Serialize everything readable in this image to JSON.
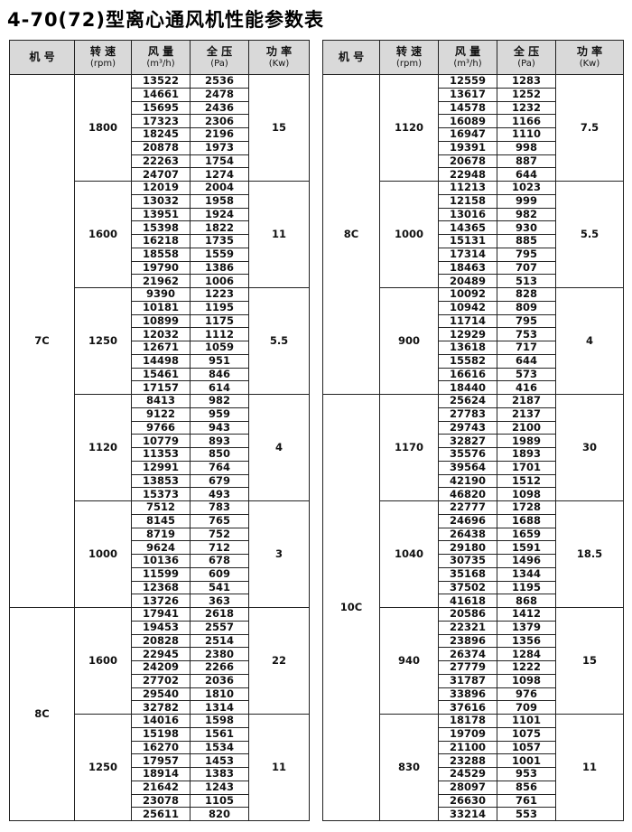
{
  "title": "4-70(72)型离心通风机性能参数表",
  "headers": [
    {
      "name": "机 号"
    },
    {
      "name": "转 速",
      "unit": "(rpm)"
    },
    {
      "name": "风 量",
      "unit": "(m³/h)"
    },
    {
      "name": "全 压",
      "unit": "(Pa)"
    },
    {
      "name": "功 率",
      "unit": "(Kw)"
    }
  ],
  "tables": [
    {
      "models": [
        {
          "name": "7C",
          "speeds": [
            {
              "speed": 1800,
              "power": 15,
              "rows": [
                [
                  13522,
                  2536
                ],
                [
                  14661,
                  2478
                ],
                [
                  15695,
                  2436
                ],
                [
                  17323,
                  2306
                ],
                [
                  18245,
                  2196
                ],
                [
                  20878,
                  1973
                ],
                [
                  22263,
                  1754
                ],
                [
                  24707,
                  1274
                ]
              ]
            },
            {
              "speed": 1600,
              "power": 11,
              "rows": [
                [
                  12019,
                  2004
                ],
                [
                  13032,
                  1958
                ],
                [
                  13951,
                  1924
                ],
                [
                  15398,
                  1822
                ],
                [
                  16218,
                  1735
                ],
                [
                  18558,
                  1559
                ],
                [
                  19790,
                  1386
                ],
                [
                  21962,
                  1006
                ]
              ]
            },
            {
              "speed": 1250,
              "power": 5.5,
              "rows": [
                [
                  9390,
                  1223
                ],
                [
                  10181,
                  1195
                ],
                [
                  10899,
                  1175
                ],
                [
                  12032,
                  1112
                ],
                [
                  12671,
                  1059
                ],
                [
                  14498,
                  951
                ],
                [
                  15461,
                  846
                ],
                [
                  17157,
                  614
                ]
              ]
            },
            {
              "speed": 1120,
              "power": 4,
              "rows": [
                [
                  8413,
                  982
                ],
                [
                  9122,
                  959
                ],
                [
                  9766,
                  943
                ],
                [
                  10779,
                  893
                ],
                [
                  11353,
                  850
                ],
                [
                  12991,
                  764
                ],
                [
                  13853,
                  679
                ],
                [
                  15373,
                  493
                ]
              ]
            },
            {
              "speed": 1000,
              "power": 3,
              "rows": [
                [
                  7512,
                  783
                ],
                [
                  8145,
                  765
                ],
                [
                  8719,
                  752
                ],
                [
                  9624,
                  712
                ],
                [
                  10136,
                  678
                ],
                [
                  11599,
                  609
                ],
                [
                  12368,
                  541
                ],
                [
                  13726,
                  363
                ]
              ]
            }
          ]
        },
        {
          "name": "8C",
          "speeds": [
            {
              "speed": 1600,
              "power": 22,
              "rows": [
                [
                  17941,
                  2618
                ],
                [
                  19453,
                  2557
                ],
                [
                  20828,
                  2514
                ],
                [
                  22945,
                  2380
                ],
                [
                  24209,
                  2266
                ],
                [
                  27702,
                  2036
                ],
                [
                  29540,
                  1810
                ],
                [
                  32782,
                  1314
                ]
              ]
            },
            {
              "speed": 1250,
              "power": 11,
              "rows": [
                [
                  14016,
                  1598
                ],
                [
                  15198,
                  1561
                ],
                [
                  16270,
                  1534
                ],
                [
                  17957,
                  1453
                ],
                [
                  18914,
                  1383
                ],
                [
                  21642,
                  1243
                ],
                [
                  23078,
                  1105
                ],
                [
                  25611,
                  820
                ]
              ]
            }
          ]
        }
      ]
    },
    {
      "models": [
        {
          "name": "8C",
          "speeds": [
            {
              "speed": 1120,
              "power": 7.5,
              "rows": [
                [
                  12559,
                  1283
                ],
                [
                  13617,
                  1252
                ],
                [
                  14578,
                  1232
                ],
                [
                  16089,
                  1166
                ],
                [
                  16947,
                  1110
                ],
                [
                  19391,
                  998
                ],
                [
                  20678,
                  887
                ],
                [
                  22948,
                  644
                ]
              ]
            },
            {
              "speed": 1000,
              "power": 5.5,
              "rows": [
                [
                  11213,
                  1023
                ],
                [
                  12158,
                  999
                ],
                [
                  13016,
                  982
                ],
                [
                  14365,
                  930
                ],
                [
                  15131,
                  885
                ],
                [
                  17314,
                  795
                ],
                [
                  18463,
                  707
                ],
                [
                  20489,
                  513
                ]
              ]
            },
            {
              "speed": 900,
              "power": 4,
              "rows": [
                [
                  10092,
                  828
                ],
                [
                  10942,
                  809
                ],
                [
                  11714,
                  795
                ],
                [
                  12929,
                  753
                ],
                [
                  13618,
                  717
                ],
                [
                  15582,
                  644
                ],
                [
                  16616,
                  573
                ],
                [
                  18440,
                  416
                ]
              ]
            }
          ]
        },
        {
          "name": "10C",
          "speeds": [
            {
              "speed": 1170,
              "power": 30,
              "rows": [
                [
                  25624,
                  2187
                ],
                [
                  27783,
                  2137
                ],
                [
                  29743,
                  2100
                ],
                [
                  32827,
                  1989
                ],
                [
                  35576,
                  1893
                ],
                [
                  39564,
                  1701
                ],
                [
                  42190,
                  1512
                ],
                [
                  46820,
                  1098
                ]
              ]
            },
            {
              "speed": 1040,
              "power": 18.5,
              "rows": [
                [
                  22777,
                  1728
                ],
                [
                  24696,
                  1688
                ],
                [
                  26438,
                  1659
                ],
                [
                  29180,
                  1591
                ],
                [
                  30735,
                  1496
                ],
                [
                  35168,
                  1344
                ],
                [
                  37502,
                  1195
                ],
                [
                  41618,
                  868
                ]
              ]
            },
            {
              "speed": 940,
              "power": 15,
              "rows": [
                [
                  20586,
                  1412
                ],
                [
                  22321,
                  1379
                ],
                [
                  23896,
                  1356
                ],
                [
                  26374,
                  1284
                ],
                [
                  27779,
                  1222
                ],
                [
                  31787,
                  1098
                ],
                [
                  33896,
                  976
                ],
                [
                  37616,
                  709
                ]
              ]
            },
            {
              "speed": 830,
              "power": 11,
              "rows": [
                [
                  18178,
                  1101
                ],
                [
                  19709,
                  1075
                ],
                [
                  21100,
                  1057
                ],
                [
                  23288,
                  1001
                ],
                [
                  24529,
                  953
                ],
                [
                  28097,
                  856
                ],
                [
                  26630,
                  761
                ],
                [
                  33214,
                  553
                ]
              ]
            }
          ]
        }
      ]
    }
  ]
}
